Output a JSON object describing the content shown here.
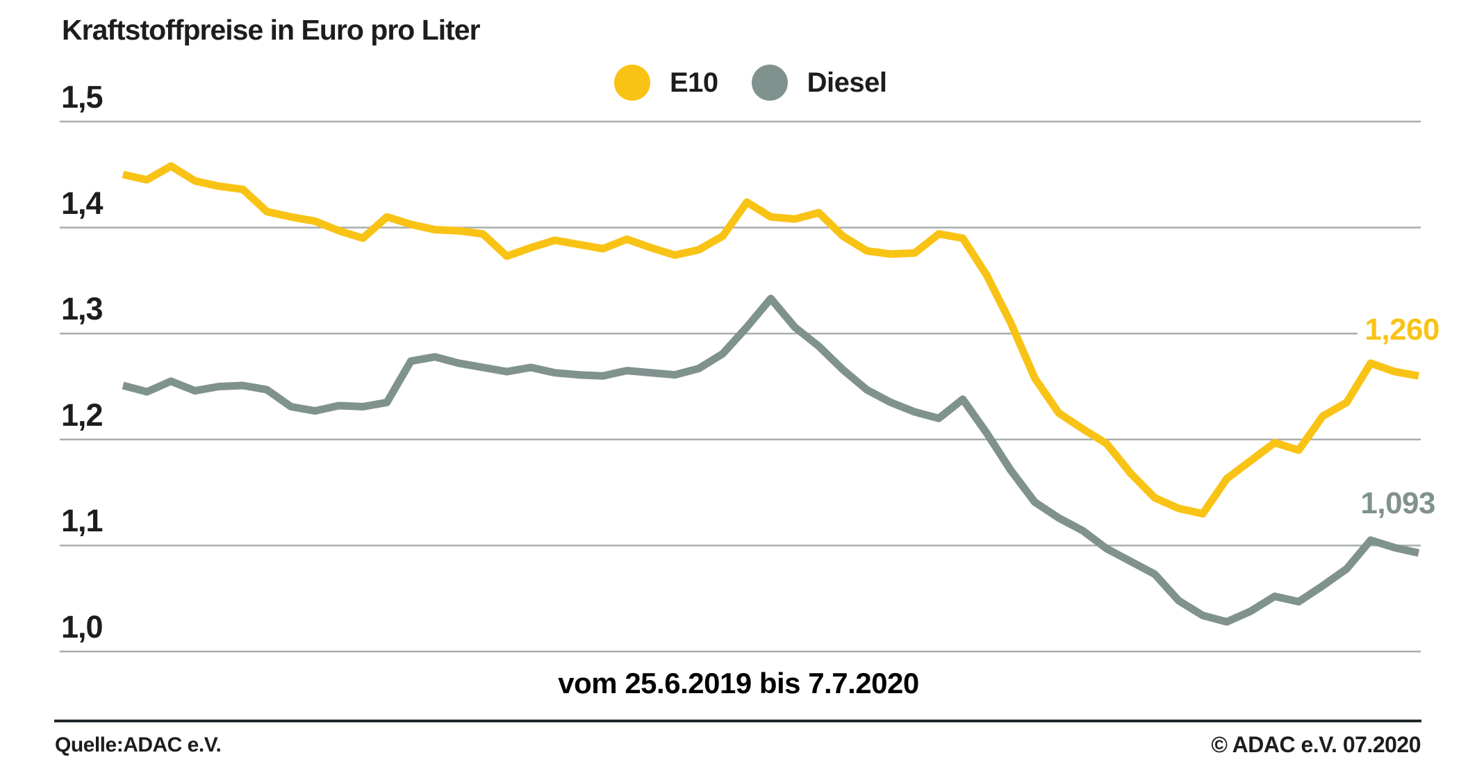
{
  "header": {
    "title": "Kraftstoffpreise in Euro pro Liter"
  },
  "legend": [
    {
      "label": "E10",
      "color": "#f9c316"
    },
    {
      "label": "Diesel",
      "color": "#80928e"
    }
  ],
  "axis": {
    "x_label": "vom 25.6.2019 bis 7.7.2020",
    "y_tick_labels": [
      "1,5",
      "1,4",
      "1,3",
      "1,2",
      "1,1",
      "1,0"
    ]
  },
  "end_labels": {
    "e10": "1,260",
    "diesel": "1,093"
  },
  "footer": {
    "source": "Quelle:ADAC e.V.",
    "copyright": "© ADAC e.V. 07.2020"
  },
  "chart_data": {
    "type": "line",
    "title": "Kraftstoffpreise in Euro pro Liter",
    "unit": "Euro pro Liter",
    "x_start": "25.6.2019",
    "x_end": "7.7.2020",
    "x_interval": "weekly",
    "ylim": [
      1.0,
      1.5
    ],
    "y_ticks": [
      1.5,
      1.4,
      1.3,
      1.2,
      1.1,
      1.0
    ],
    "grid": "horizontal",
    "legend_position": "top",
    "gridline_color": "#a9adac",
    "series": [
      {
        "name": "E10",
        "color": "#f9c316",
        "final_value": 1.26,
        "final_value_label": "1,260",
        "values": [
          1.45,
          1.445,
          1.458,
          1.444,
          1.439,
          1.436,
          1.415,
          1.41,
          1.406,
          1.397,
          1.39,
          1.41,
          1.403,
          1.398,
          1.397,
          1.394,
          1.373,
          1.381,
          1.388,
          1.384,
          1.38,
          1.389,
          1.381,
          1.374,
          1.379,
          1.392,
          1.424,
          1.41,
          1.408,
          1.414,
          1.392,
          1.378,
          1.375,
          1.376,
          1.394,
          1.39,
          1.355,
          1.31,
          1.258,
          1.225,
          1.21,
          1.196,
          1.168,
          1.145,
          1.135,
          1.13,
          1.163,
          1.18,
          1.197,
          1.19,
          1.222,
          1.235,
          1.272,
          1.264,
          1.26
        ]
      },
      {
        "name": "Diesel",
        "color": "#80928e",
        "final_value": 1.093,
        "final_value_label": "1,093",
        "values": [
          1.251,
          1.245,
          1.255,
          1.246,
          1.25,
          1.251,
          1.247,
          1.231,
          1.227,
          1.232,
          1.231,
          1.235,
          1.274,
          1.278,
          1.272,
          1.268,
          1.264,
          1.268,
          1.263,
          1.261,
          1.26,
          1.265,
          1.263,
          1.261,
          1.267,
          1.281,
          1.306,
          1.333,
          1.306,
          1.288,
          1.266,
          1.247,
          1.235,
          1.226,
          1.22,
          1.238,
          1.206,
          1.171,
          1.141,
          1.126,
          1.114,
          1.097,
          1.085,
          1.073,
          1.048,
          1.034,
          1.028,
          1.038,
          1.052,
          1.047,
          1.062,
          1.078,
          1.105,
          1.098,
          1.093
        ]
      }
    ]
  }
}
